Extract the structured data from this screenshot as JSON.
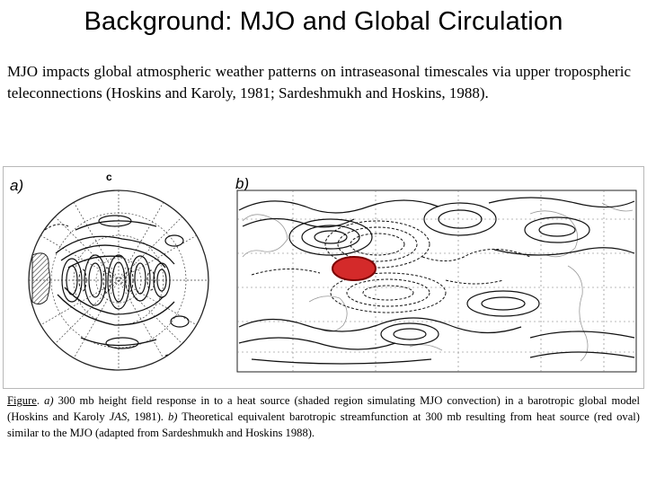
{
  "title": "Background: MJO and Global Circulation",
  "body_text": "MJO impacts global atmospheric weather patterns on intraseasonal timescales via upper tropospheric teleconnections (Hoskins and Karoly, 1981; Sardeshmukh and Hoskins, 1988).",
  "figure": {
    "panel_a_label": "a)",
    "panel_a_marker": "c",
    "panel_b_label": "b)",
    "heat_source_color": "#d42a2a"
  },
  "caption": {
    "figure_word": "Figure",
    "part_a_label": "a)",
    "part_a_text": " 300 mb height field response in to a heat source (shaded region simulating MJO convection) in a barotropic global model (Hoskins and Karoly ",
    "part_a_journal": "JAS",
    "part_a_year": ", 1981). ",
    "part_b_label": "b)",
    "part_b_text": " Theoretical equivalent barotropic streamfunction at 300 mb resulting from heat source (red oval) similar to the MJO (adapted from Sardeshmukh and Hoskins 1988)."
  }
}
